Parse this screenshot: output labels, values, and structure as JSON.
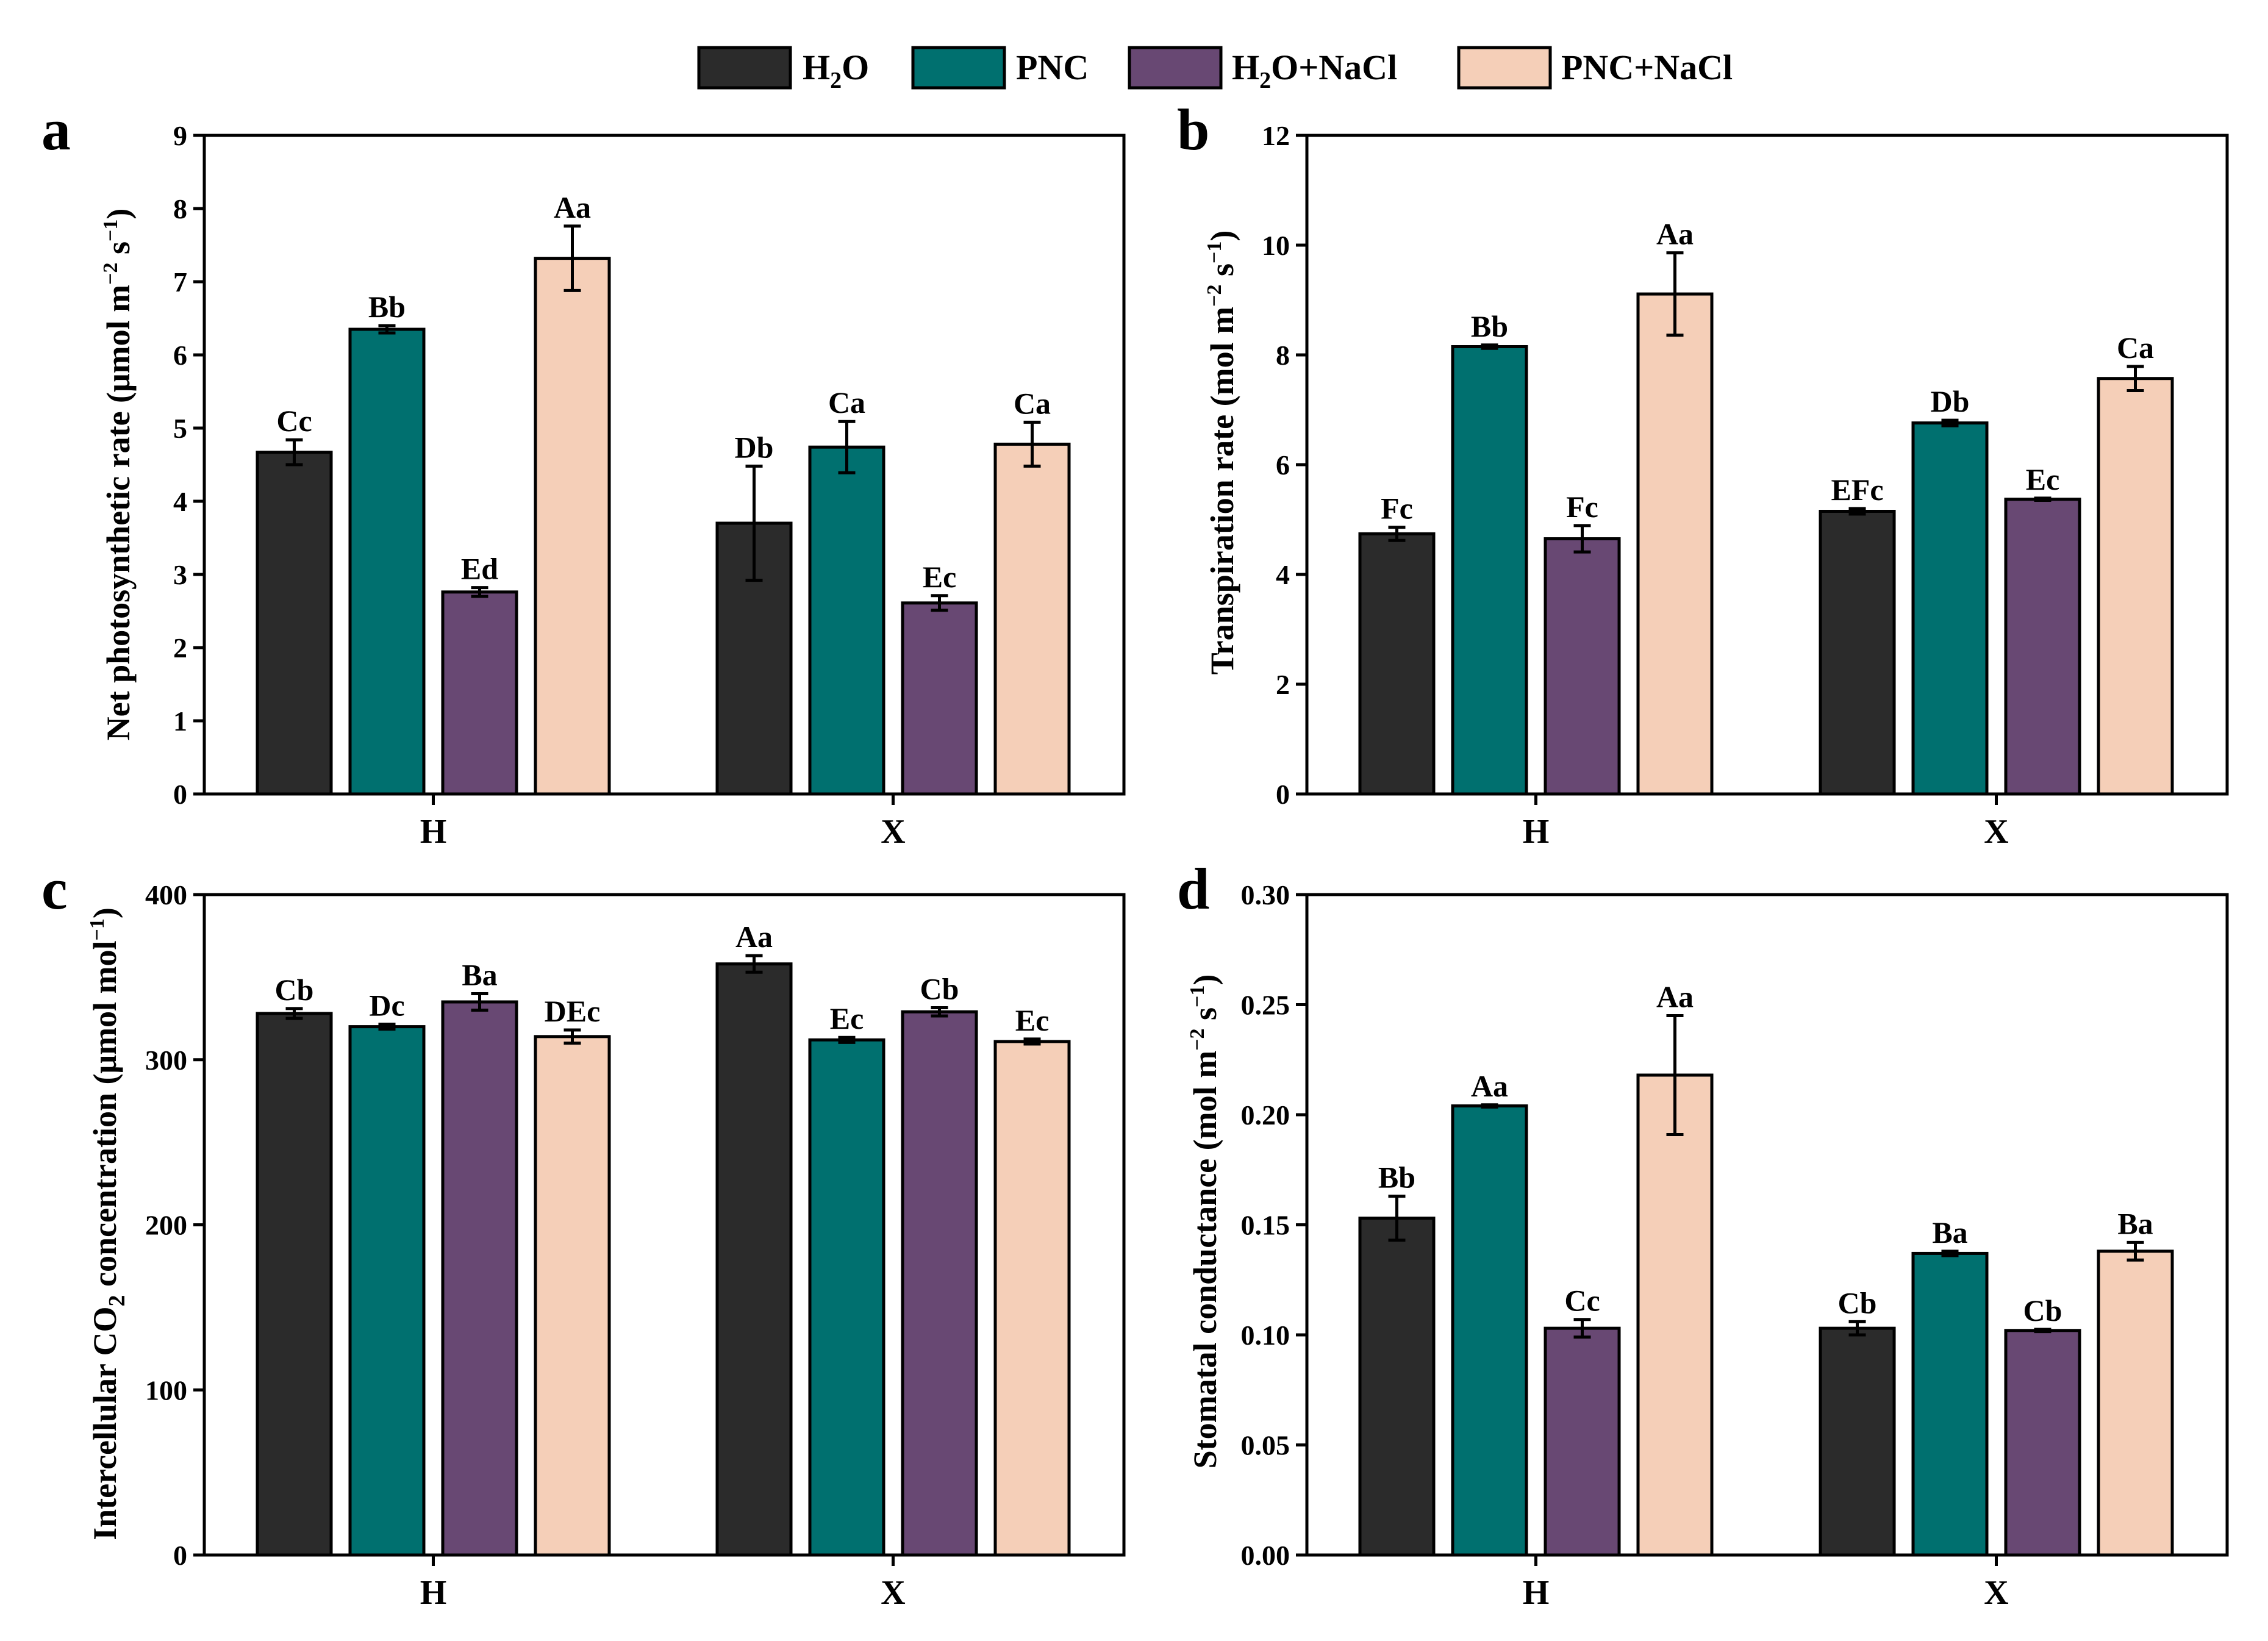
{
  "legend": [
    {
      "key": "h2o",
      "label": "H₂O",
      "main": "H",
      "sub": "2",
      "tail": "O",
      "color": "#2b2b2b"
    },
    {
      "key": "pnc",
      "label": "PNC",
      "main": "PNC",
      "sub": "",
      "tail": "",
      "color": "#00706f"
    },
    {
      "key": "h2o_nacl",
      "label": "H₂O+NaCl",
      "main": "H",
      "sub": "2",
      "tail": "O+NaCl",
      "color": "#684873"
    },
    {
      "key": "pnc_nacl",
      "label": "PNC+NaCl",
      "main": "PNC+NaCl",
      "sub": "",
      "tail": "",
      "color": "#f5cfb8"
    }
  ],
  "chart_data": [
    {
      "panel": "a",
      "type": "bar",
      "ylabel": "Net photosynthetic rate (μmol m⁻² s⁻¹)",
      "ylabel_main": "Net photosynthetic rate (μmol m",
      "ylim": [
        0,
        9
      ],
      "yticks": [
        "0",
        "1",
        "2",
        "3",
        "4",
        "5",
        "6",
        "7",
        "8",
        "9"
      ],
      "categories": [
        "H",
        "X"
      ],
      "series": [
        {
          "name": "H₂O",
          "values": [
            4.67,
            3.7
          ],
          "errors": [
            0.17,
            0.78
          ],
          "labels": [
            "Cc",
            "Db"
          ]
        },
        {
          "name": "PNC",
          "values": [
            6.35,
            4.74
          ],
          "errors": [
            0.05,
            0.35
          ],
          "labels": [
            "Bb",
            "Ca"
          ]
        },
        {
          "name": "H₂O+NaCl",
          "values": [
            2.76,
            2.61
          ],
          "errors": [
            0.06,
            0.1
          ],
          "labels": [
            "Ed",
            "Ec"
          ]
        },
        {
          "name": "PNC+NaCl",
          "values": [
            7.32,
            4.78
          ],
          "errors": [
            0.44,
            0.3
          ],
          "labels": [
            "Aa",
            "Ca"
          ]
        }
      ]
    },
    {
      "panel": "b",
      "type": "bar",
      "ylabel": "Transpiration rate (mol m⁻² s⁻¹)",
      "ylabel_main": "Transpiration rate (mol m",
      "ylim": [
        0,
        12
      ],
      "yticks": [
        "0",
        "2",
        "4",
        "6",
        "8",
        "10",
        "12"
      ],
      "categories": [
        "H",
        "X"
      ],
      "series": [
        {
          "name": "H₂O",
          "values": [
            4.74,
            5.15
          ],
          "errors": [
            0.12,
            0.05
          ],
          "labels": [
            "Fc",
            "EFc"
          ]
        },
        {
          "name": "PNC",
          "values": [
            8.15,
            6.76
          ],
          "errors": [
            0.03,
            0.05
          ],
          "labels": [
            "Bb",
            "Db"
          ]
        },
        {
          "name": "H₂O+NaCl",
          "values": [
            4.65,
            5.37
          ],
          "errors": [
            0.24,
            0.02
          ],
          "labels": [
            "Fc",
            "Ec"
          ]
        },
        {
          "name": "PNC+NaCl",
          "values": [
            9.11,
            7.57
          ],
          "errors": [
            0.75,
            0.22
          ],
          "labels": [
            "Aa",
            "Ca"
          ]
        }
      ]
    },
    {
      "panel": "c",
      "type": "bar",
      "ylabel": "Intercellular CO₂ concentration (μmol mol⁻¹)",
      "ylabel_main": "Intercellular CO",
      "ylabel_tail": " concentration (μmol mol",
      "ylim": [
        0,
        400
      ],
      "yticks": [
        "0",
        "100",
        "200",
        "300",
        "400"
      ],
      "categories": [
        "H",
        "X"
      ],
      "series": [
        {
          "name": "H₂O",
          "values": [
            328,
            358
          ],
          "errors": [
            3,
            5
          ],
          "labels": [
            "Cb",
            "Aa"
          ]
        },
        {
          "name": "PNC",
          "values": [
            320,
            312
          ],
          "errors": [
            1.5,
            1.5
          ],
          "labels": [
            "Dc",
            "Ec"
          ]
        },
        {
          "name": "H₂O+NaCl",
          "values": [
            335,
            329
          ],
          "errors": [
            5,
            2.5
          ],
          "labels": [
            "Ba",
            "Cb"
          ]
        },
        {
          "name": "PNC+NaCl",
          "values": [
            314,
            311
          ],
          "errors": [
            4,
            1.5
          ],
          "labels": [
            "DEc",
            "Ec"
          ]
        }
      ]
    },
    {
      "panel": "d",
      "type": "bar",
      "ylabel": "Stomatal conductance (mol m⁻² s⁻¹)",
      "ylabel_main": "Stomatal conductance (mol m",
      "ylim": [
        0,
        0.3
      ],
      "yticks": [
        "0.00",
        "0.05",
        "0.10",
        "0.15",
        "0.20",
        "0.25",
        "0.30"
      ],
      "categories": [
        "H",
        "X"
      ],
      "series": [
        {
          "name": "H₂O",
          "values": [
            0.153,
            0.103
          ],
          "errors": [
            0.01,
            0.003
          ],
          "labels": [
            "Bb",
            "Cb"
          ]
        },
        {
          "name": "PNC",
          "values": [
            0.204,
            0.137
          ],
          "errors": [
            0.0005,
            0.001
          ],
          "labels": [
            "Aa",
            "Ba"
          ]
        },
        {
          "name": "H₂O+NaCl",
          "values": [
            0.103,
            0.102
          ],
          "errors": [
            0.004,
            0.0005
          ],
          "labels": [
            "Cc",
            "Cb"
          ]
        },
        {
          "name": "PNC+NaCl",
          "values": [
            0.218,
            0.138
          ],
          "errors": [
            0.027,
            0.004
          ],
          "labels": [
            "Aa",
            "Ba"
          ]
        }
      ]
    }
  ],
  "sup_minus2": "−2",
  "sup_minus1": "−1",
  "sub_2": "2",
  "paren_close": ")",
  "s_text": " s"
}
